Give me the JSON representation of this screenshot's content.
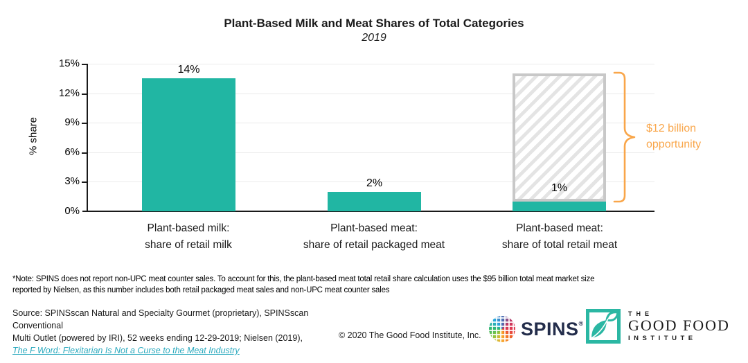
{
  "chart_data": {
    "type": "bar",
    "title": "Plant-Based Milk and Meat Shares of Total Categories",
    "subtitle": "2019",
    "ylabel": "% share",
    "ylim": [
      0,
      15
    ],
    "yticks": [
      "15%",
      "12%",
      "9%",
      "6%",
      "3%",
      "0%"
    ],
    "grid": "horizontal",
    "categories": [
      {
        "line1": "Plant-based milk:",
        "line2": "share of retail milk"
      },
      {
        "line1": "Plant-based meat:",
        "line2": "share of retail packaged meat"
      },
      {
        "line1": "Plant-based meat:",
        "line2": "share of total retail meat"
      }
    ],
    "values": [
      14,
      2,
      1
    ],
    "value_labels": [
      "14%",
      "2%",
      "1%"
    ],
    "bar_color": "#21B6A3",
    "opportunity": {
      "from_pct": 1,
      "to_pct": 14,
      "label_line1": "$12 billion",
      "label_line2": "opportunity",
      "color": "#F9A64A",
      "hatch_border_color": "#C8C8C8"
    }
  },
  "note": {
    "line1": "*Note: SPINS does not report non-UPC meat counter sales. To account for this, the plant-based meat total retail share calculation uses the $95 billion total meat market size",
    "line2": "reported by Nielsen, as this number includes both retail packaged meat sales and non-UPC meat counter sales"
  },
  "footer": {
    "source_line1": "Source: SPINSscan Natural and Specialty Gourmet (proprietary), SPINSscan Conventional",
    "source_line2": "Multi Outlet (powered by IRI), 52 weeks ending 12-29-2019; Nielsen (2019),",
    "link_text": "The F Word: Flexitarian Is Not a Curse to the Meat Industry",
    "link_color": "#2AA9BE",
    "copyright": "© 2020 The Good Food Institute, Inc."
  },
  "logos": {
    "spins": {
      "name": "SPINS",
      "registered": "®",
      "text_color": "#232D4B"
    },
    "gfi": {
      "line1": "THE",
      "line2": "GOOD FOOD",
      "line3": "INSTITUTE",
      "brand_color": "#2BB7A3"
    }
  }
}
